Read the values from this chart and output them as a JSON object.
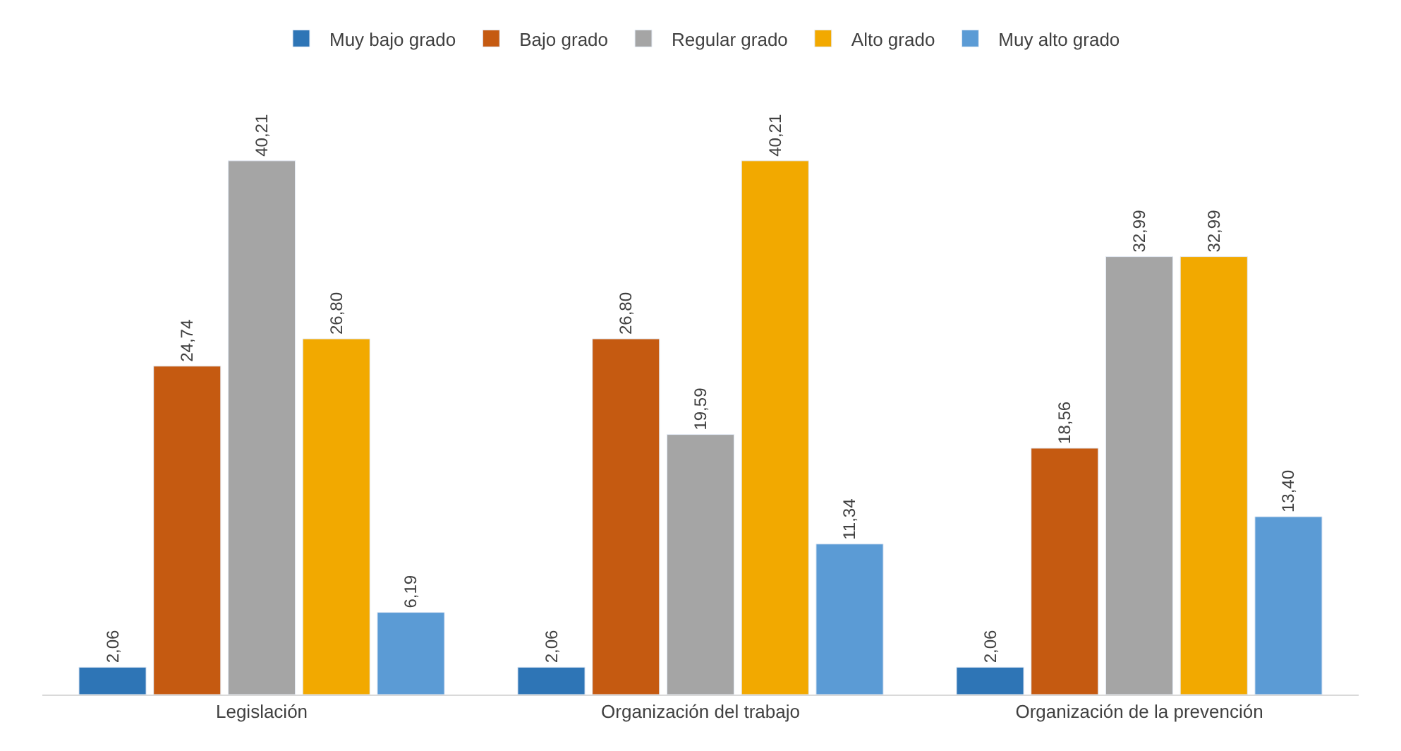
{
  "chart_data": {
    "type": "bar",
    "categories": [
      "Legislación",
      "Organización del trabajo",
      "Organización de la prevención"
    ],
    "series": [
      {
        "name": "Muy bajo grado",
        "color": "#2e75b6",
        "values": [
          2.06,
          2.06,
          2.06
        ],
        "value_labels": [
          "2,06",
          "2,06",
          "2,06"
        ]
      },
      {
        "name": "Bajo grado",
        "color": "#c55a11",
        "values": [
          24.74,
          26.8,
          18.56
        ],
        "value_labels": [
          "24,74",
          "26,80",
          "18,56"
        ]
      },
      {
        "name": "Regular grado",
        "color": "#a5a5a5",
        "values": [
          40.21,
          19.59,
          32.99
        ],
        "value_labels": [
          "40,21",
          "19,59",
          "32,99"
        ]
      },
      {
        "name": "Alto grado",
        "color": "#f2a900",
        "values": [
          26.8,
          40.21,
          32.99
        ],
        "value_labels": [
          "26,80",
          "40,21",
          "32,99"
        ]
      },
      {
        "name": "Muy alto grado",
        "color": "#5b9bd5",
        "values": [
          6.19,
          11.34,
          13.4
        ],
        "value_labels": [
          "6,19",
          "11,34",
          "13,40"
        ]
      }
    ],
    "legend": "top",
    "tick_labels": "x"
  }
}
